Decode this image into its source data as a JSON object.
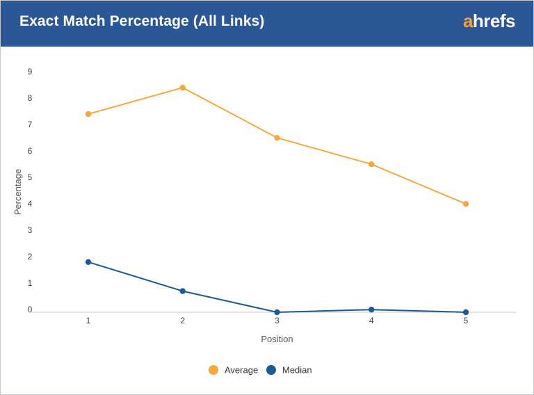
{
  "header": {
    "title": "Exact Match Percentage (All Links)",
    "logo_first": "a",
    "logo_rest": "hrefs"
  },
  "chart_data": {
    "type": "line",
    "title": "Exact Match Percentage (All Links)",
    "xlabel": "Position",
    "ylabel": "Percentage",
    "x": [
      1,
      2,
      3,
      4,
      5
    ],
    "xticks": [
      "1",
      "2",
      "3",
      "4",
      "5"
    ],
    "yticks": [
      "0",
      "1",
      "2",
      "3",
      "4",
      "5",
      "6",
      "7",
      "8",
      "9"
    ],
    "ylim": [
      0,
      9
    ],
    "grid": false,
    "legend_position": "bottom-center",
    "series": [
      {
        "name": "Average",
        "color": "#f7a740",
        "values": [
          7.5,
          8.5,
          6.6,
          5.6,
          4.1
        ]
      },
      {
        "name": "Median",
        "color": "#1a5a96",
        "values": [
          1.9,
          0.8,
          0.0,
          0.1,
          0.0
        ]
      }
    ]
  }
}
